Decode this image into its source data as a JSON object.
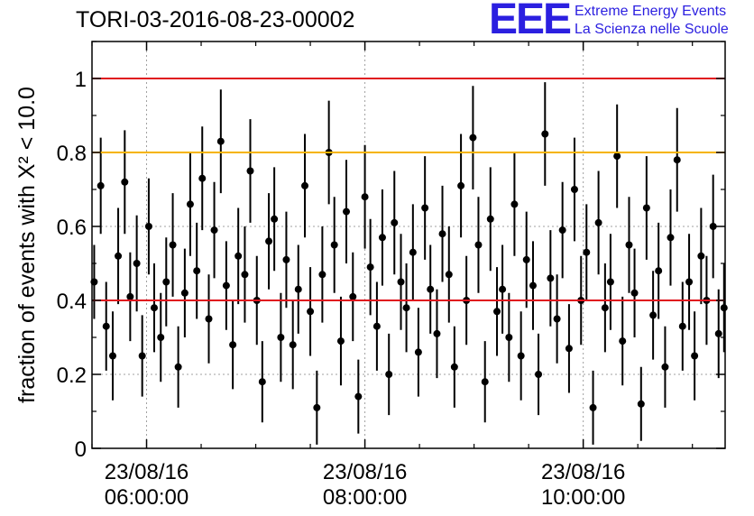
{
  "header": {
    "title": "TORI-03-2016-08-23-00002",
    "logo_text": "EEE",
    "logo_line1": "Extreme Energy Events",
    "logo_line2": "La Scienza nelle Scuole"
  },
  "colors": {
    "ref_line_red": "#e0141e",
    "ref_line_orange": "#f5b400",
    "grid": "#a0a0a0",
    "points": "#000000",
    "logo": "#2b1fe0"
  },
  "chart_data": {
    "type": "scatter",
    "title": "TORI-03-2016-08-23-00002",
    "xlabel": "",
    "ylabel": "fraction of events with Χ² < 10.0",
    "ylim": [
      0,
      1.1
    ],
    "yticks": [
      "0",
      "0.2",
      "0.4",
      "0.6",
      "0.8",
      "1"
    ],
    "xticks": [
      {
        "date": "23/08/16",
        "time": "06:00:00"
      },
      {
        "date": "23/08/16",
        "time": "08:00:00"
      },
      {
        "date": "23/08/16",
        "time": "10:00:00"
      }
    ],
    "xlim_hours": [
      5.5,
      11.3
    ],
    "reference_lines": [
      {
        "y": 1.0,
        "color": "red"
      },
      {
        "y": 0.8,
        "color": "orange"
      },
      {
        "y": 0.4,
        "color": "red"
      }
    ],
    "grid": "dotted",
    "series": [
      {
        "x_hours": [
          5.52,
          5.58,
          5.63,
          5.69,
          5.74,
          5.8,
          5.85,
          5.91,
          5.96,
          6.02,
          6.07,
          6.13,
          6.18,
          6.24,
          6.29,
          6.35,
          6.4,
          6.46,
          6.51,
          6.57,
          6.62,
          6.68,
          6.73,
          6.79,
          6.84,
          6.9,
          6.95,
          7.01,
          7.06,
          7.12,
          7.17,
          7.23,
          7.28,
          7.34,
          7.39,
          7.45,
          7.5,
          7.56,
          7.61,
          7.67,
          7.72,
          7.78,
          7.83,
          7.89,
          7.94,
          8.0,
          8.05,
          8.11,
          8.16,
          8.22,
          8.27,
          8.33,
          8.38,
          8.44,
          8.49,
          8.55,
          8.6,
          8.66,
          8.71,
          8.77,
          8.82,
          8.88,
          8.93,
          8.99,
          9.04,
          9.1,
          9.15,
          9.21,
          9.26,
          9.32,
          9.37,
          9.43,
          9.48,
          9.54,
          9.59,
          9.65,
          9.7,
          9.76,
          9.81,
          9.87,
          9.92,
          9.98,
          10.03,
          10.09,
          10.14,
          10.2,
          10.25,
          10.31,
          10.36,
          10.42,
          10.47,
          10.53,
          10.58,
          10.64,
          10.69,
          10.75,
          10.8,
          10.86,
          10.91,
          10.97,
          11.02,
          11.08,
          11.13,
          11.19,
          11.24,
          11.29
        ],
        "y": [
          0.45,
          0.71,
          0.33,
          0.25,
          0.52,
          0.72,
          0.41,
          0.5,
          0.25,
          0.6,
          0.38,
          0.3,
          0.45,
          0.55,
          0.22,
          0.42,
          0.66,
          0.48,
          0.73,
          0.35,
          0.59,
          0.83,
          0.44,
          0.28,
          0.52,
          0.47,
          0.75,
          0.4,
          0.18,
          0.56,
          0.62,
          0.3,
          0.51,
          0.28,
          0.43,
          0.71,
          0.37,
          0.11,
          0.47,
          0.8,
          0.55,
          0.29,
          0.64,
          0.41,
          0.14,
          0.68,
          0.49,
          0.33,
          0.57,
          0.2,
          0.61,
          0.45,
          0.38,
          0.53,
          0.26,
          0.65,
          0.43,
          0.31,
          0.58,
          0.47,
          0.22,
          0.71,
          0.4,
          0.84,
          0.55,
          0.18,
          0.62,
          0.37,
          0.43,
          0.3,
          0.66,
          0.25,
          0.51,
          0.44,
          0.2,
          0.85,
          0.46,
          0.35,
          0.59,
          0.27,
          0.7,
          0.4,
          0.53,
          0.11,
          0.61,
          0.38,
          0.45,
          0.79,
          0.29,
          0.55,
          0.42,
          0.12,
          0.65,
          0.36,
          0.48,
          0.22,
          0.57,
          0.78,
          0.33,
          0.45,
          0.25,
          0.52,
          0.4,
          0.6,
          0.31,
          0.38
        ],
        "err": [
          0.1,
          0.13,
          0.12,
          0.12,
          0.13,
          0.14,
          0.12,
          0.13,
          0.11,
          0.13,
          0.12,
          0.12,
          0.12,
          0.14,
          0.11,
          0.12,
          0.14,
          0.13,
          0.14,
          0.12,
          0.13,
          0.14,
          0.12,
          0.12,
          0.13,
          0.13,
          0.14,
          0.12,
          0.11,
          0.13,
          0.14,
          0.12,
          0.13,
          0.12,
          0.12,
          0.14,
          0.12,
          0.1,
          0.13,
          0.14,
          0.13,
          0.12,
          0.14,
          0.12,
          0.1,
          0.14,
          0.13,
          0.12,
          0.13,
          0.11,
          0.14,
          0.13,
          0.12,
          0.13,
          0.12,
          0.14,
          0.12,
          0.12,
          0.13,
          0.13,
          0.11,
          0.14,
          0.12,
          0.14,
          0.13,
          0.11,
          0.14,
          0.12,
          0.12,
          0.12,
          0.14,
          0.12,
          0.13,
          0.12,
          0.11,
          0.14,
          0.13,
          0.12,
          0.13,
          0.12,
          0.14,
          0.12,
          0.13,
          0.1,
          0.14,
          0.12,
          0.13,
          0.14,
          0.12,
          0.13,
          0.12,
          0.1,
          0.14,
          0.12,
          0.13,
          0.11,
          0.13,
          0.14,
          0.12,
          0.13,
          0.12,
          0.13,
          0.12,
          0.14,
          0.12,
          0.12
        ]
      }
    ]
  }
}
